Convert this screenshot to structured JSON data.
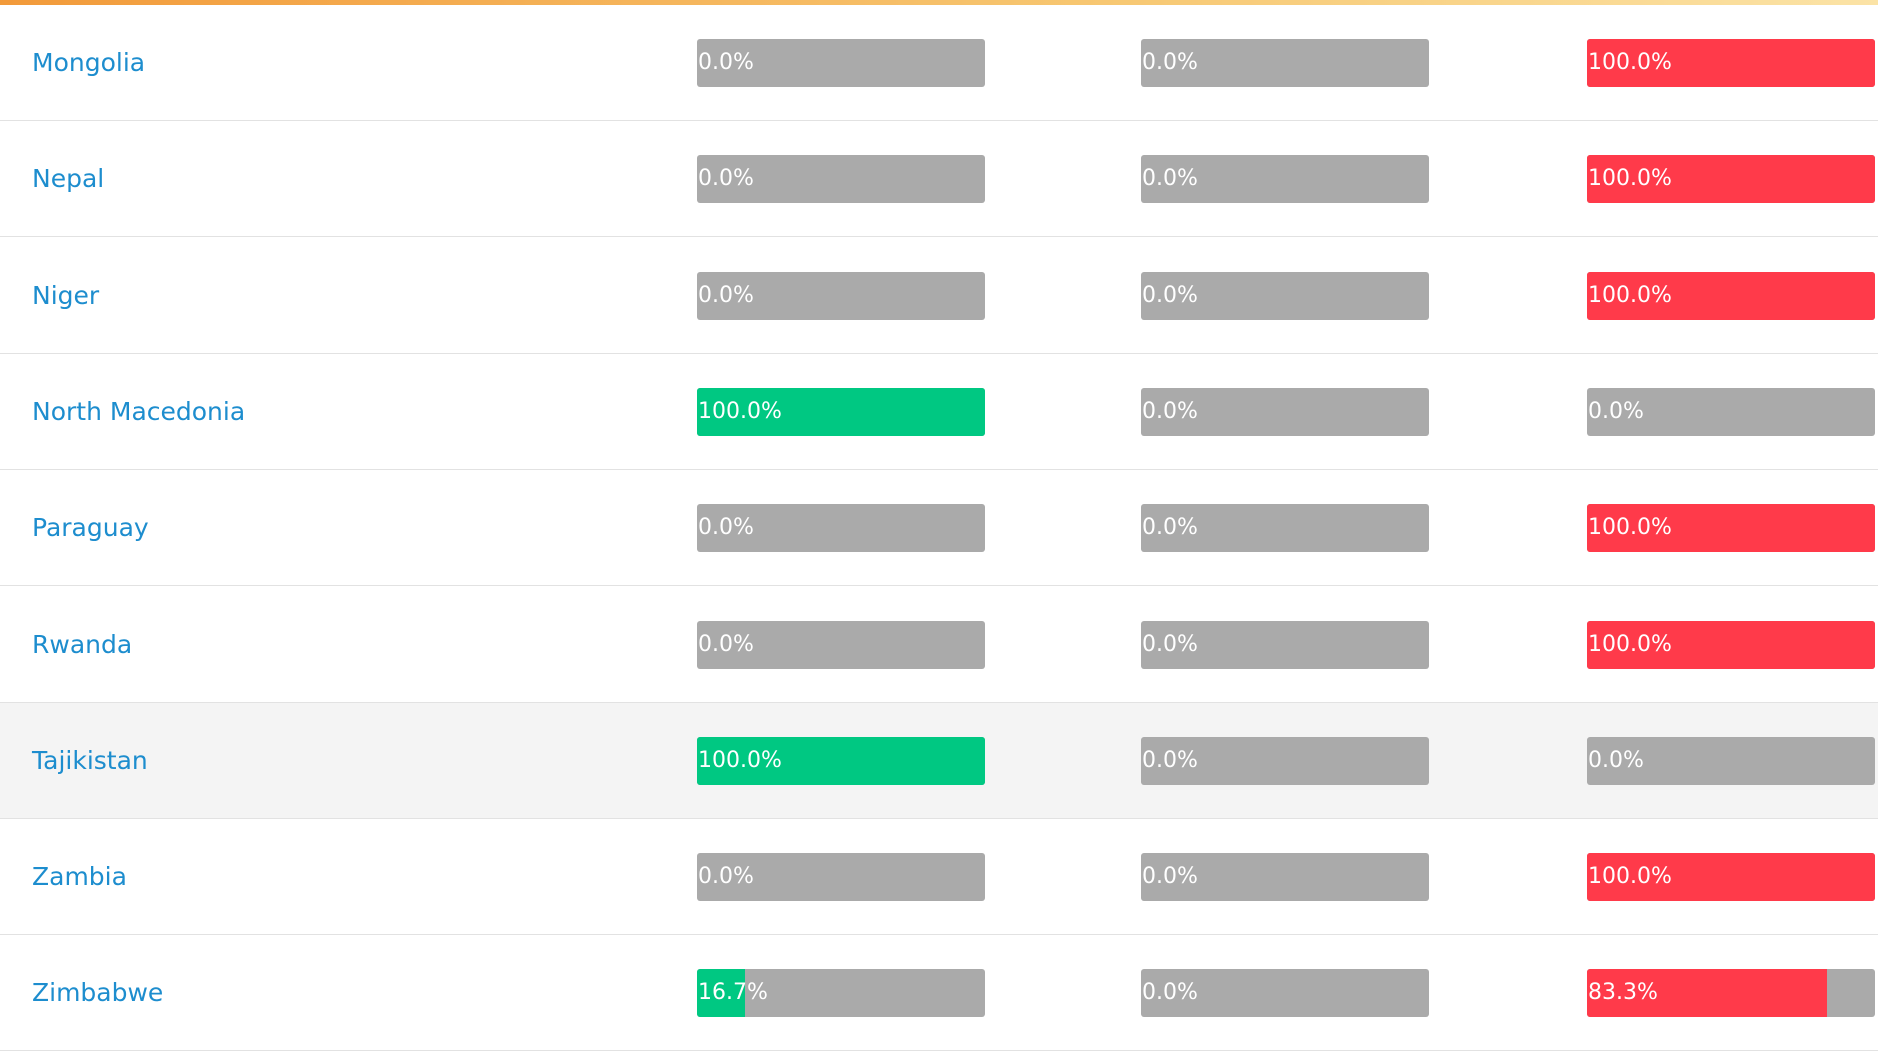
{
  "colors": [
    "#00c882",
    "#aaaaaa",
    "#ff3a4a"
  ],
  "bar_background": "#aaaaaa",
  "highlight_row": 6,
  "rows": [
    {
      "name": "Mongolia",
      "cells": [
        {
          "value": 0,
          "label": "0.0%"
        },
        {
          "value": 0,
          "label": "0.0%"
        },
        {
          "value": 100,
          "label": "100.0%"
        }
      ]
    },
    {
      "name": "Nepal",
      "cells": [
        {
          "value": 0,
          "label": "0.0%"
        },
        {
          "value": 0,
          "label": "0.0%"
        },
        {
          "value": 100,
          "label": "100.0%"
        }
      ]
    },
    {
      "name": "Niger",
      "cells": [
        {
          "value": 0,
          "label": "0.0%"
        },
        {
          "value": 0,
          "label": "0.0%"
        },
        {
          "value": 100,
          "label": "100.0%"
        }
      ]
    },
    {
      "name": "North Macedonia",
      "cells": [
        {
          "value": 100,
          "label": "100.0%"
        },
        {
          "value": 0,
          "label": "0.0%"
        },
        {
          "value": 0,
          "label": "0.0%"
        }
      ]
    },
    {
      "name": "Paraguay",
      "cells": [
        {
          "value": 0,
          "label": "0.0%"
        },
        {
          "value": 0,
          "label": "0.0%"
        },
        {
          "value": 100,
          "label": "100.0%"
        }
      ]
    },
    {
      "name": "Rwanda",
      "cells": [
        {
          "value": 0,
          "label": "0.0%"
        },
        {
          "value": 0,
          "label": "0.0%"
        },
        {
          "value": 100,
          "label": "100.0%"
        }
      ]
    },
    {
      "name": "Tajikistan",
      "cells": [
        {
          "value": 100,
          "label": "100.0%"
        },
        {
          "value": 0,
          "label": "0.0%"
        },
        {
          "value": 0,
          "label": "0.0%"
        }
      ]
    },
    {
      "name": "Zambia",
      "cells": [
        {
          "value": 0,
          "label": "0.0%"
        },
        {
          "value": 0,
          "label": "0.0%"
        },
        {
          "value": 100,
          "label": "100.0%"
        }
      ]
    },
    {
      "name": "Zimbabwe",
      "cells": [
        {
          "value": 16.7,
          "label": "16.7%"
        },
        {
          "value": 0,
          "label": "0.0%"
        },
        {
          "value": 83.3,
          "label": "83.3%"
        }
      ]
    }
  ]
}
